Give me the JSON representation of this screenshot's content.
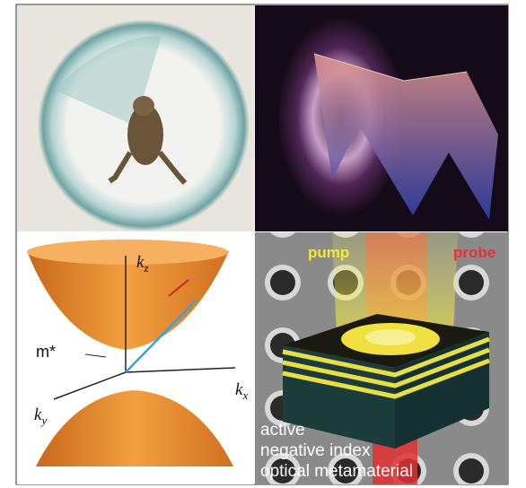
{
  "dispersion": {
    "axes": [
      {
        "symbol": "k",
        "subscript": "z"
      },
      {
        "symbol": "k",
        "subscript": "x"
      },
      {
        "symbol": "k",
        "subscript": "y"
      }
    ],
    "mass_label": "m*"
  },
  "metamaterial": {
    "beams": [
      "pump",
      "probe"
    ],
    "caption": [
      "active",
      "negative index",
      "optical metamaterial"
    ]
  }
}
